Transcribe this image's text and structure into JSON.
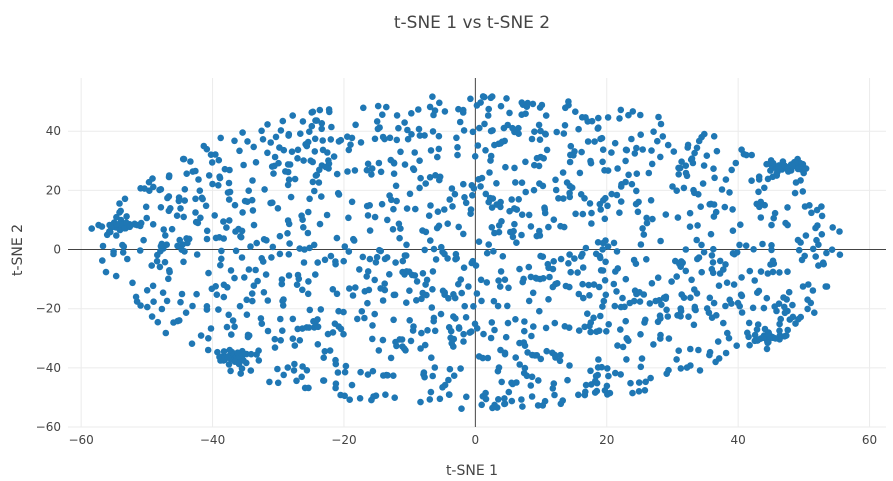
{
  "chart_data": {
    "type": "scatter",
    "title": "t-SNE 1 vs t-SNE 2",
    "xlabel": "t-SNE 1",
    "ylabel": "t-SNE 2",
    "xlim": [
      -62,
      62.5
    ],
    "ylim": [
      -60,
      58
    ],
    "x_ticks": [
      -60,
      -40,
      -20,
      0,
      20,
      40,
      60
    ],
    "y_ticks": [
      -60,
      -40,
      -20,
      0,
      20,
      40
    ],
    "x_tick_labels": [
      "−60",
      "−40",
      "−20",
      "0",
      "20",
      "40",
      "60"
    ],
    "y_tick_labels": [
      "−60",
      "−40",
      "−20",
      "0",
      "20",
      "40"
    ],
    "grid": true,
    "zero_lines": true,
    "marker_color": "#1f77b4",
    "point_count_estimate": 1500,
    "x_range_of_points": [
      -57,
      56
    ],
    "y_range_of_points": [
      -54,
      52
    ],
    "distribution": "elliptical cloud centered near (0, 0), spanning x about -57 to 56 and y about -54 to 52",
    "dense_clusters": [
      {
        "x": -37,
        "y": -36
      },
      {
        "x": 48,
        "y": 28
      },
      {
        "x": 44,
        "y": -30
      },
      {
        "x": -54,
        "y": 8
      }
    ]
  }
}
